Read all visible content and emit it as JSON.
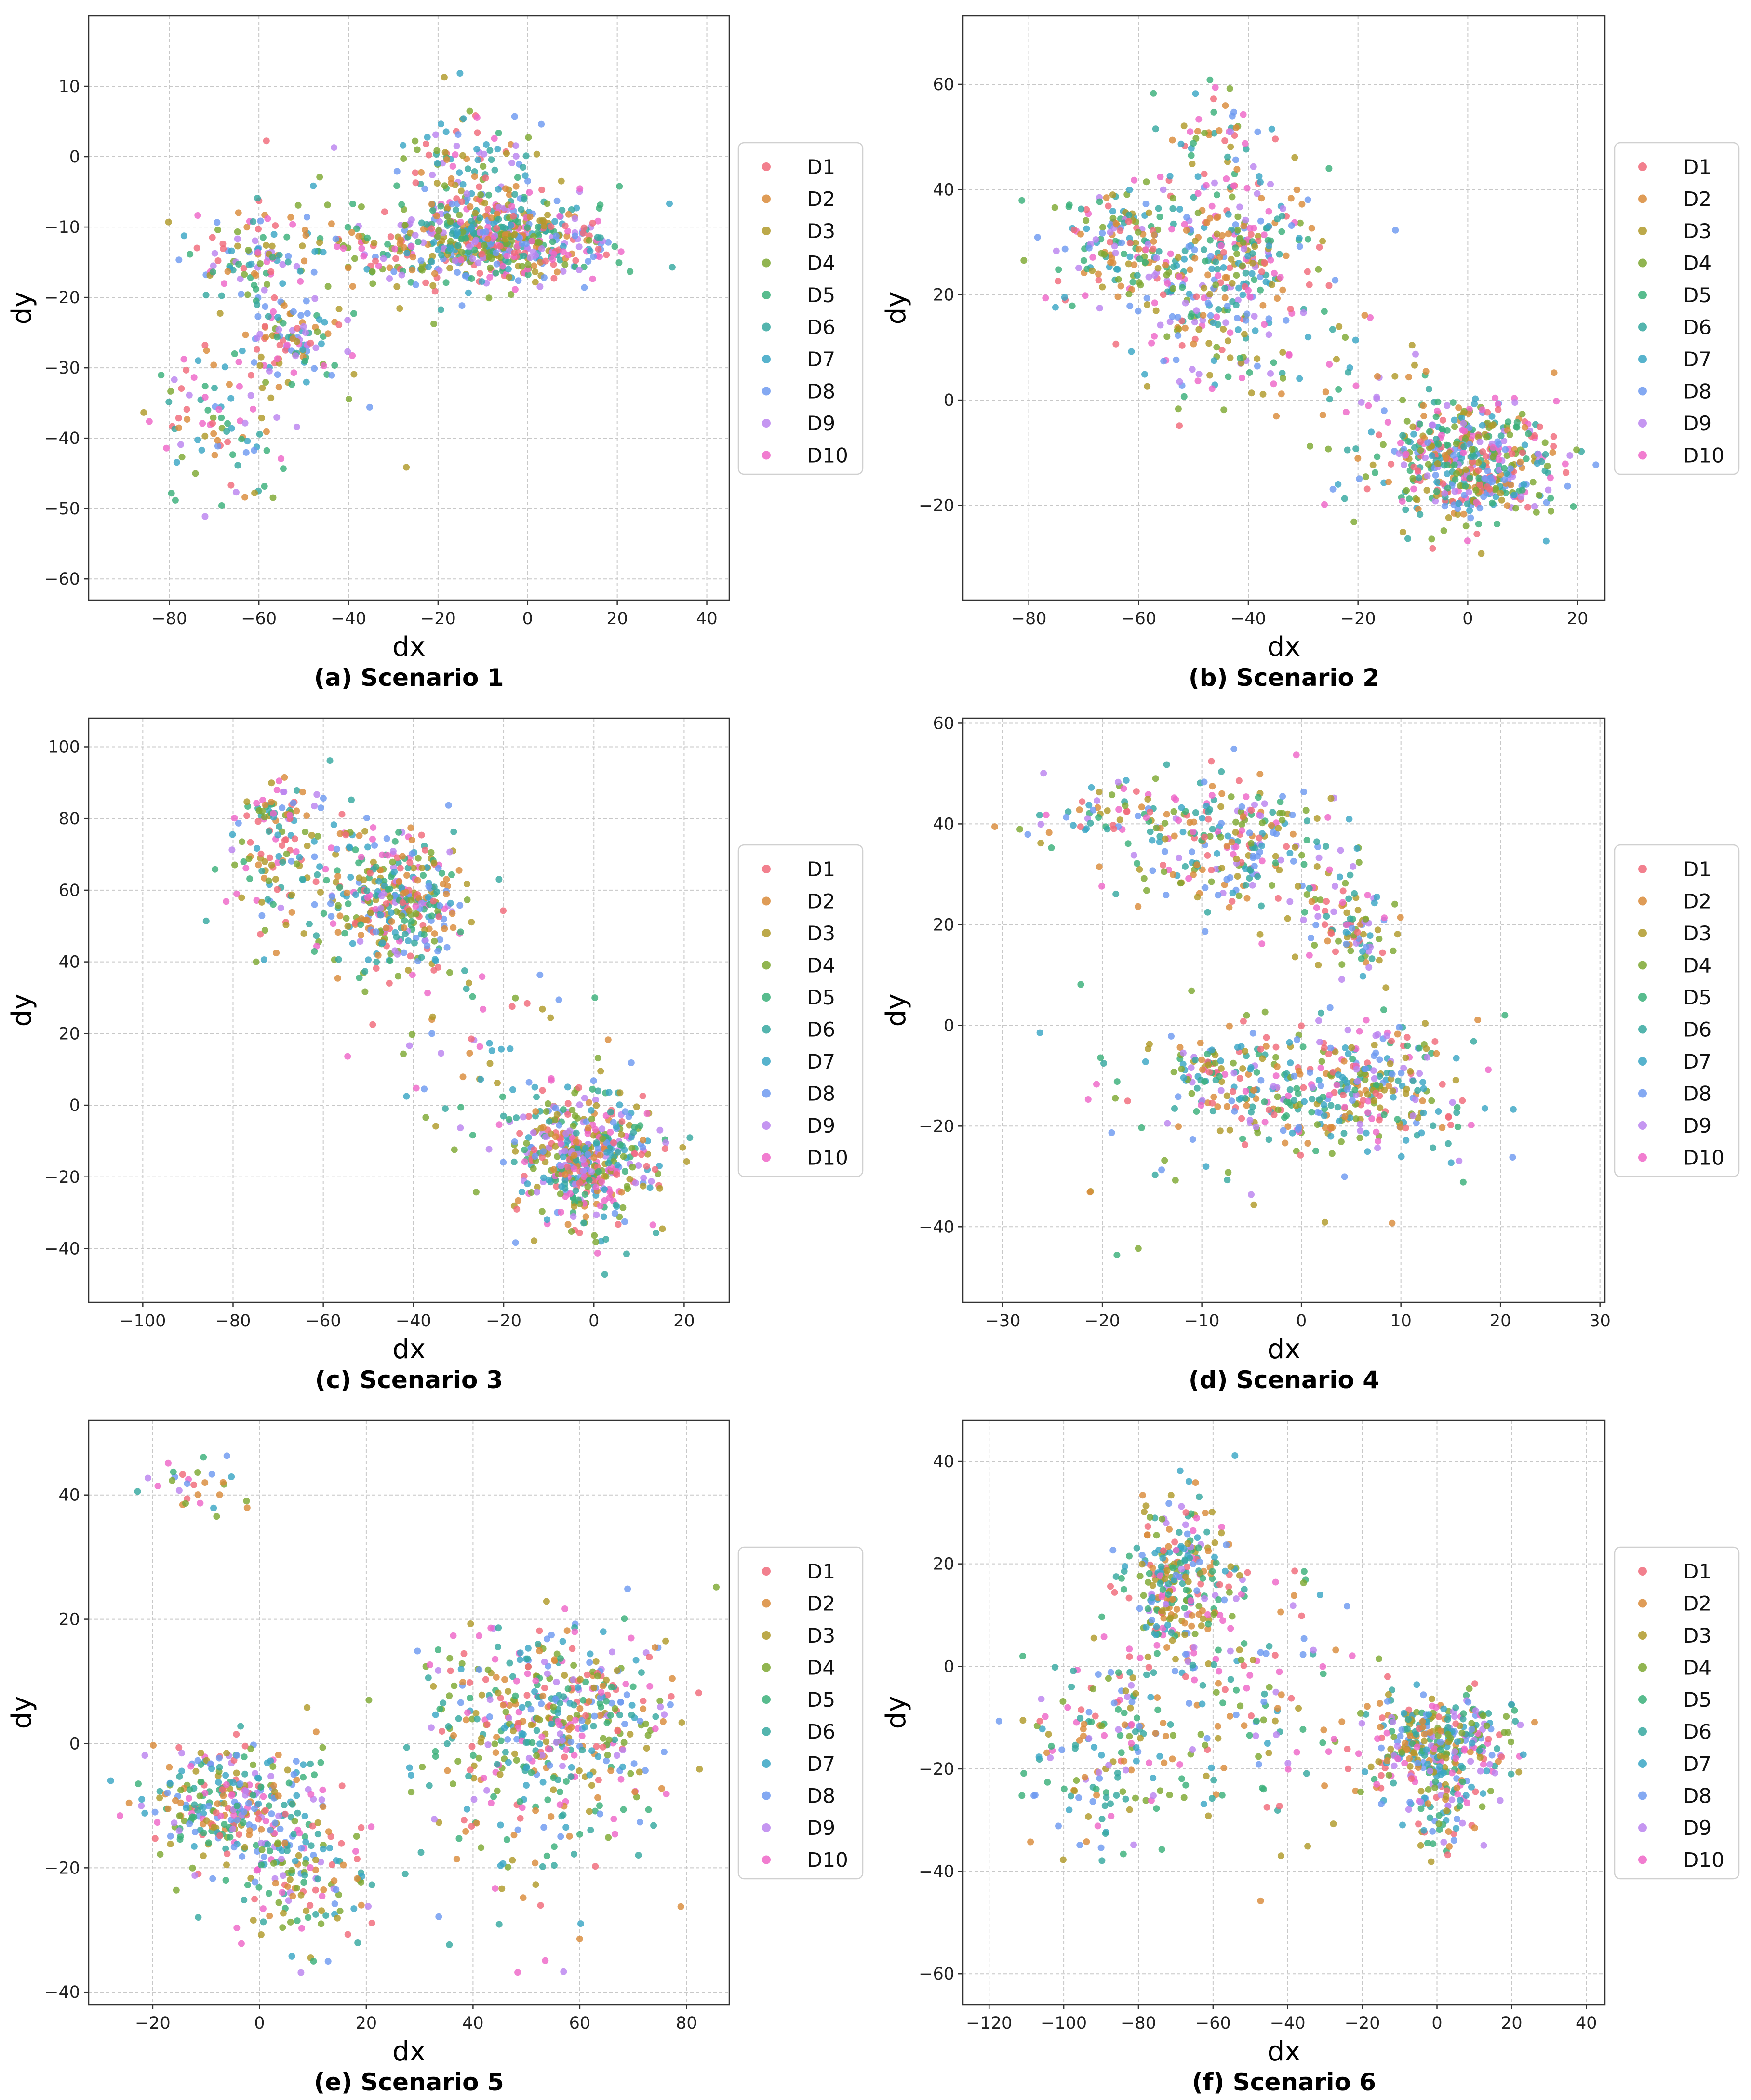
{
  "legend_series": [
    "D1",
    "D2",
    "D3",
    "D4",
    "D5",
    "D6",
    "D7",
    "D8",
    "D9",
    "D10"
  ],
  "series_colors": [
    "#f06a7a",
    "#d98b3a",
    "#b09a2a",
    "#7ea832",
    "#3bb07a",
    "#36a8a0",
    "#3aa6c4",
    "#6e9af0",
    "#bb84ef",
    "#ee66c8"
  ],
  "chart_data": [
    {
      "type": "scatter",
      "caption": "(a) Scenario 1",
      "xlabel": "dx",
      "ylabel": "dy",
      "xlim": [
        -98,
        45
      ],
      "ylim": [
        -63,
        20
      ],
      "xticks": [
        -80,
        -60,
        -40,
        -20,
        0,
        20,
        40
      ],
      "yticks": [
        -60,
        -50,
        -40,
        -30,
        -20,
        -10,
        0,
        10
      ],
      "grid": true,
      "legend": "right",
      "series": [
        "D1",
        "D2",
        "D3",
        "D4",
        "D5",
        "D6",
        "D7",
        "D8",
        "D9",
        "D10"
      ],
      "clusters": [
        {
          "cx": -5,
          "cy": -12,
          "sx": 11,
          "sy": 3,
          "n": 520
        },
        {
          "cx": -12,
          "cy": -2,
          "sx": 8,
          "sy": 5,
          "n": 120
        },
        {
          "cx": -27,
          "cy": -13,
          "sx": 8,
          "sy": 3,
          "n": 80
        },
        {
          "cx": -53,
          "cy": -26,
          "sx": 4,
          "sy": 3,
          "n": 90
        },
        {
          "cx": -62,
          "cy": -14,
          "sx": 6,
          "sy": 4,
          "n": 90
        },
        {
          "cx": -70,
          "cy": -38,
          "sx": 7,
          "sy": 6,
          "n": 90
        },
        {
          "cx": -45,
          "cy": -17,
          "sx": 12,
          "sy": 8,
          "n": 80
        }
      ]
    },
    {
      "type": "scatter",
      "caption": "(b) Scenario 2",
      "xlabel": "dx",
      "ylabel": "dy",
      "xlim": [
        -92,
        25
      ],
      "ylim": [
        -38,
        73
      ],
      "xticks": [
        -80,
        -60,
        -40,
        -20,
        0,
        20
      ],
      "yticks": [
        -20,
        0,
        20,
        40,
        60
      ],
      "grid": true,
      "legend": "right",
      "series": [
        "D1",
        "D2",
        "D3",
        "D4",
        "D5",
        "D6",
        "D7",
        "D8",
        "D9",
        "D10"
      ],
      "clusters": [
        {
          "cx": 0,
          "cy": -12,
          "sx": 8,
          "sy": 6,
          "n": 520
        },
        {
          "cx": -62,
          "cy": 28,
          "sx": 7,
          "sy": 6,
          "n": 180
        },
        {
          "cx": -42,
          "cy": 28,
          "sx": 7,
          "sy": 8,
          "n": 230
        },
        {
          "cx": -47,
          "cy": 12,
          "sx": 8,
          "sy": 8,
          "n": 100
        },
        {
          "cx": -45,
          "cy": 48,
          "sx": 6,
          "sy": 7,
          "n": 60
        },
        {
          "cx": -25,
          "cy": 5,
          "sx": 12,
          "sy": 12,
          "n": 50
        }
      ]
    },
    {
      "type": "scatter",
      "caption": "(c) Scenario 3",
      "xlabel": "dx",
      "ylabel": "dy",
      "xlim": [
        -112,
        30
      ],
      "ylim": [
        -55,
        108
      ],
      "xticks": [
        -100,
        -80,
        -60,
        -40,
        -20,
        0,
        20
      ],
      "yticks": [
        -40,
        -20,
        0,
        20,
        40,
        60,
        80,
        100
      ],
      "grid": true,
      "legend": "right",
      "series": [
        "D1",
        "D2",
        "D3",
        "D4",
        "D5",
        "D6",
        "D7",
        "D8",
        "D9",
        "D10"
      ],
      "clusters": [
        {
          "cx": -2,
          "cy": -15,
          "sx": 8,
          "sy": 9,
          "n": 500
        },
        {
          "cx": -43,
          "cy": 57,
          "sx": 7,
          "sy": 9,
          "n": 330
        },
        {
          "cx": -65,
          "cy": 65,
          "sx": 9,
          "sy": 13,
          "n": 140
        },
        {
          "cx": -70,
          "cy": 82,
          "sx": 4,
          "sy": 3,
          "n": 40
        },
        {
          "cx": -25,
          "cy": 18,
          "sx": 15,
          "sy": 18,
          "n": 70
        }
      ]
    },
    {
      "type": "scatter",
      "caption": "(d) Scenario 4",
      "xlabel": "dx",
      "ylabel": "dy",
      "xlim": [
        -34,
        30.5
      ],
      "ylim": [
        -55,
        61
      ],
      "xticks": [
        -30,
        -20,
        -10,
        0,
        10,
        20,
        30
      ],
      "yticks": [
        -40,
        -20,
        0,
        20,
        40,
        60
      ],
      "grid": true,
      "legend": "right",
      "series": [
        "D1",
        "D2",
        "D3",
        "D4",
        "D5",
        "D6",
        "D7",
        "D8",
        "D9",
        "D10"
      ],
      "clusters": [
        {
          "cx": -6,
          "cy": 35,
          "sx": 5,
          "sy": 6,
          "n": 230
        },
        {
          "cx": 5,
          "cy": 20,
          "sx": 2.5,
          "sy": 5,
          "n": 100
        },
        {
          "cx": -19,
          "cy": 42,
          "sx": 5,
          "sy": 3,
          "n": 80
        },
        {
          "cx": 7,
          "cy": -12,
          "sx": 5,
          "sy": 6,
          "n": 230
        },
        {
          "cx": -3,
          "cy": -13,
          "sx": 5,
          "sy": 6,
          "n": 160
        },
        {
          "cx": -9,
          "cy": -8,
          "sx": 2,
          "sy": 2,
          "n": 40
        },
        {
          "cx": -5,
          "cy": -20,
          "sx": 12,
          "sy": 12,
          "n": 60
        }
      ]
    },
    {
      "type": "scatter",
      "caption": "(e) Scenario 5",
      "xlabel": "dx",
      "ylabel": "dy",
      "xlim": [
        -32,
        88
      ],
      "ylim": [
        -42,
        52
      ],
      "xticks": [
        -20,
        0,
        20,
        40,
        60,
        80
      ],
      "yticks": [
        -40,
        -20,
        0,
        20,
        40
      ],
      "grid": true,
      "legend": "right",
      "series": [
        "D1",
        "D2",
        "D3",
        "D4",
        "D5",
        "D6",
        "D7",
        "D8",
        "D9",
        "D10"
      ],
      "clusters": [
        {
          "cx": -5,
          "cy": -10,
          "sx": 8,
          "sy": 5,
          "n": 310
        },
        {
          "cx": 8,
          "cy": -22,
          "sx": 6,
          "sy": 6,
          "n": 140
        },
        {
          "cx": 58,
          "cy": 3,
          "sx": 9,
          "sy": 8,
          "n": 380
        },
        {
          "cx": 42,
          "cy": 5,
          "sx": 8,
          "sy": 8,
          "n": 90
        },
        {
          "cx": -12,
          "cy": 42,
          "sx": 5,
          "sy": 2.5,
          "n": 30
        },
        {
          "cx": 45,
          "cy": -18,
          "sx": 12,
          "sy": 8,
          "n": 60
        }
      ]
    },
    {
      "type": "scatter",
      "caption": "(f) Scenario 6",
      "xlabel": "dx",
      "ylabel": "dy",
      "xlim": [
        -127,
        45
      ],
      "ylim": [
        -66,
        48
      ],
      "xticks": [
        -120,
        -100,
        -80,
        -60,
        -40,
        -20,
        0,
        20,
        40
      ],
      "yticks": [
        -60,
        -40,
        -20,
        0,
        20,
        40
      ],
      "grid": true,
      "legend": "right",
      "series": [
        "D1",
        "D2",
        "D3",
        "D4",
        "D5",
        "D6",
        "D7",
        "D8",
        "D9",
        "D10"
      ],
      "clusters": [
        {
          "cx": -69,
          "cy": 17,
          "sx": 7,
          "sy": 8,
          "n": 280
        },
        {
          "cx": -88,
          "cy": -16,
          "sx": 11,
          "sy": 9,
          "n": 170
        },
        {
          "cx": 0,
          "cy": -15,
          "sx": 10,
          "sy": 5,
          "n": 340
        },
        {
          "cx": 2,
          "cy": -28,
          "sx": 5,
          "sy": 5,
          "n": 70
        },
        {
          "cx": -50,
          "cy": -5,
          "sx": 14,
          "sy": 14,
          "n": 130
        }
      ]
    }
  ]
}
